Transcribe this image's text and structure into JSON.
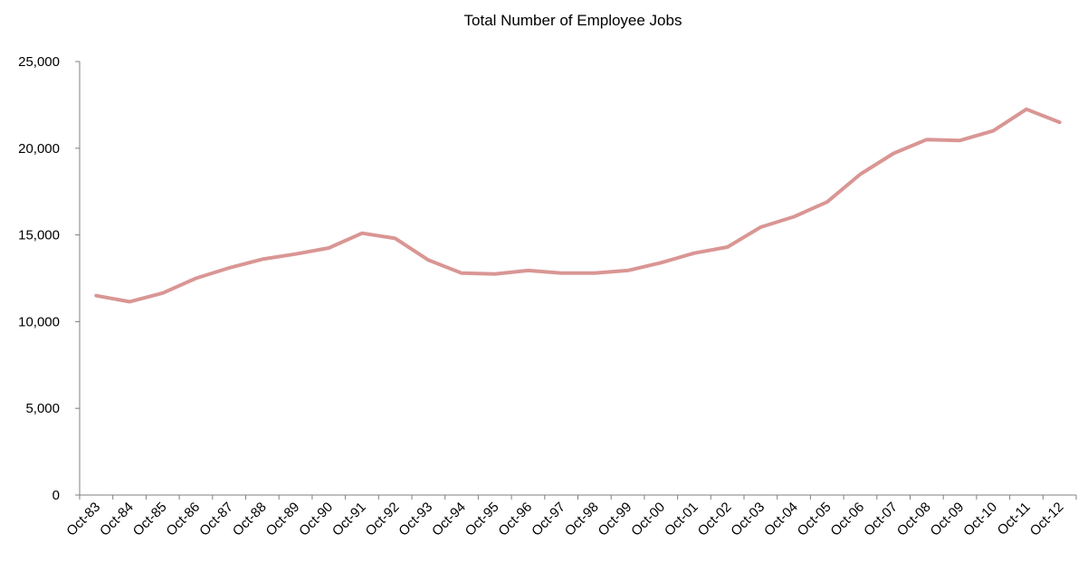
{
  "chart_data": {
    "type": "line",
    "title": "Total Number of Employee Jobs",
    "xlabel": "",
    "ylabel": "",
    "ylim": [
      0,
      25000
    ],
    "y_ticks": [
      0,
      5000,
      10000,
      15000,
      20000,
      25000
    ],
    "y_tick_labels": [
      "0",
      "5,000",
      "10,000",
      "15,000",
      "20,000",
      "25,000"
    ],
    "grid": false,
    "legend": "none",
    "categories": [
      "Oct-83",
      "Oct-84",
      "Oct-85",
      "Oct-86",
      "Oct-87",
      "Oct-88",
      "Oct-89",
      "Oct-90",
      "Oct-91",
      "Oct-92",
      "Oct-93",
      "Oct-94",
      "Oct-95",
      "Oct-96",
      "Oct-97",
      "Oct-98",
      "Oct-99",
      "Oct-00",
      "Oct-01",
      "Oct-02",
      "Oct-03",
      "Oct-04",
      "Oct-05",
      "Oct-06",
      "Oct-07",
      "Oct-08",
      "Oct-09",
      "Oct-10",
      "Oct-11",
      "Oct-12"
    ],
    "series": [
      {
        "color": "#d99694",
        "values": [
          11500,
          11150,
          11650,
          12500,
          13100,
          13600,
          13900,
          14250,
          15100,
          14800,
          13550,
          12800,
          12750,
          12950,
          12800,
          12800,
          12950,
          13400,
          13950,
          14300,
          15450,
          16050,
          16900,
          18500,
          19700,
          20500,
          20450,
          21000,
          22250,
          21500
        ]
      }
    ],
    "colors": {
      "axis": "#7f7f7f",
      "text": "#000000"
    }
  }
}
